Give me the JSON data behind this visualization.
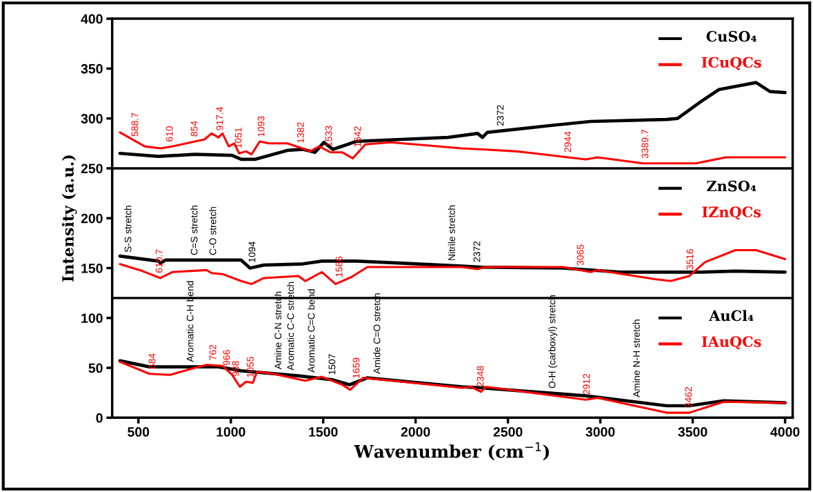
{
  "chart_data": {
    "type": "line",
    "xlabel": "Wavenumber (cm$^{−1}$)",
    "ylabel": "Intensity (a.u.)",
    "xlim": [
      358,
      4041
    ],
    "xticks": [
      500,
      1000,
      1500,
      2000,
      2500,
      3000,
      3500,
      4000
    ],
    "ylim": [
      0,
      400
    ],
    "yticks": [
      0,
      50,
      100,
      150,
      200,
      250,
      300,
      350,
      400
    ],
    "grid": false,
    "legend": "top right",
    "marker": "none",
    "line_style": "solid",
    "ref_lines": [
      {
        "axis": "y",
        "value": 250,
        "color": "#000000",
        "line_style": "solid"
      },
      {
        "axis": "y",
        "value": 120,
        "color": "#000000",
        "line_style": "solid"
      }
    ],
    "series": [
      {
        "name": "CuSO₄",
        "color": "#000000",
        "x": [
          400,
          608,
          806,
          1007,
          1056,
          1130,
          1306,
          1392,
          1455,
          1504,
          1552,
          1679,
          1925,
          2175,
          2336,
          2362,
          2388,
          2735,
          2948,
          3358,
          3418,
          3545,
          3642,
          3843,
          3918,
          4000
        ],
        "values": [
          265,
          262,
          264,
          263,
          259,
          259,
          268,
          269,
          266,
          276,
          269,
          277,
          279,
          281,
          285,
          281,
          286,
          293,
          297,
          299,
          300,
          317,
          329,
          336,
          327,
          326
        ]
      },
      {
        "name": "ICuQCs",
        "color": "#ff0000",
        "x": [
          400,
          534,
          619,
          683,
          858,
          896,
          933,
          955,
          989,
          1019,
          1045,
          1082,
          1112,
          1157,
          1205,
          1306,
          1403,
          1429,
          1478,
          1541,
          1604,
          1660,
          1728,
          1866,
          2250,
          2362,
          2549,
          2922,
          2985,
          3231,
          3519,
          3679,
          4000
        ],
        "values": [
          286,
          272,
          270,
          272,
          279,
          285,
          281,
          285,
          272,
          275,
          265,
          267,
          264,
          277,
          275,
          275,
          269,
          267,
          272,
          266,
          266,
          260,
          274,
          276,
          270,
          269,
          267,
          259,
          261,
          255,
          255,
          261,
          261
        ]
      },
      {
        "name": "ZnSO₄",
        "color": "#000000",
        "x": [
          400,
          608,
          620,
          646,
          1056,
          1104,
          1179,
          1381,
          1493,
          1679,
          1925,
          2250,
          2351,
          2799,
          3108,
          3545,
          3731,
          4000
        ],
        "values": [
          162,
          157,
          155,
          158,
          158,
          150,
          153,
          154,
          157,
          157,
          155,
          152,
          151,
          150,
          146,
          146,
          147,
          146
        ]
      },
      {
        "name": "IZnQCs",
        "color": "#ff0000",
        "x": [
          400,
          522,
          619,
          683,
          869,
          896,
          955,
          1056,
          1112,
          1179,
          1366,
          1403,
          1493,
          1567,
          1653,
          1739,
          2250,
          2336,
          2373,
          2799,
          2948,
          2985,
          3295,
          3381,
          3481,
          3567,
          3731,
          3843,
          4000
        ],
        "values": [
          154,
          147,
          140,
          146,
          148,
          145,
          144,
          137,
          134,
          140,
          142,
          137,
          146,
          134,
          141,
          151,
          151,
          149,
          151,
          151,
          146,
          148,
          139,
          137,
          142,
          156,
          168,
          168,
          159
        ]
      },
      {
        "name": "AuCl₄",
        "color": "#000000",
        "x": [
          400,
          560,
          933,
          1056,
          1366,
          1552,
          1642,
          1739,
          2250,
          2351,
          2922,
          3358,
          3481,
          3668,
          4000
        ],
        "values": [
          57,
          51,
          51,
          47,
          42,
          38,
          33,
          40,
          31,
          30,
          22,
          12,
          12,
          17,
          15
        ]
      },
      {
        "name": "IAuQCs",
        "color": "#ff0000",
        "x": [
          400,
          560,
          672,
          806,
          869,
          955,
          1007,
          1049,
          1082,
          1119,
          1142,
          1231,
          1403,
          1493,
          1604,
          1646,
          1716,
          2250,
          2299,
          2355,
          2380,
          2922,
          2985,
          3358,
          3481,
          3668,
          4000
        ],
        "values": [
          56,
          44,
          43,
          50,
          53,
          52,
          43,
          31,
          36,
          35,
          46,
          44,
          37,
          41,
          33,
          28,
          40,
          30,
          31,
          26,
          31,
          18,
          20,
          5,
          5,
          16,
          15
        ]
      }
    ],
    "annotations": [
      {
        "text": "588.7",
        "x": 485,
        "y": 277.1
      },
      {
        "text": "610",
        "x": 672,
        "y": 271.7
      },
      {
        "text": "854",
        "x": 806,
        "y": 276.9
      },
      {
        "text": "917.4",
        "x": 944,
        "y": 283
      },
      {
        "text": "1051",
        "x": 1045,
        "y": 265
      },
      {
        "text": "1093",
        "x": 1168,
        "y": 276.5
      },
      {
        "text": "1382",
        "x": 1382,
        "y": 270.3
      },
      {
        "text": "1533",
        "x": 1534,
        "y": 266.7
      },
      {
        "text": "1642",
        "x": 1690,
        "y": 266.2
      },
      {
        "text": "2372",
        "x": 2463,
        "y": 287.5
      },
      {
        "text": "2944",
        "x": 2828,
        "y": 261
      },
      {
        "text": "3389.7",
        "x": 3246,
        "y": 255
      },
      {
        "text": "S-S stretch",
        "x": 448,
        "y": 160.8
      },
      {
        "text": "610.7",
        "x": 616,
        "y": 140.2
      },
      {
        "text": "C=S stretch",
        "x": 806,
        "y": 158
      },
      {
        "text": "C-O stretch",
        "x": 907,
        "y": 158
      },
      {
        "text": "1094",
        "x": 1119,
        "y": 150.6
      },
      {
        "text": "1586",
        "x": 1590,
        "y": 135.9
      },
      {
        "text": "Nitrile stretch",
        "x": 2200,
        "y": 152.5
      },
      {
        "text": "2372",
        "x": 2336,
        "y": 151.1
      },
      {
        "text": "3065",
        "x": 2896,
        "y": 147.7
      },
      {
        "text": "3516",
        "x": 3489,
        "y": 143.3
      },
      {
        "text": "762",
        "x": 907,
        "y": 52.6
      },
      {
        "text": "988",
        "x": 1030,
        "y": 36.4
      },
      {
        "text": "Aromatic C-H bend",
        "x": 784,
        "y": 51
      },
      {
        "text": "Amine C-N stretch",
        "x": 1260,
        "y": 43.7
      },
      {
        "text": "Aromatic C-C stretch",
        "x": 1328,
        "y": 42.6
      },
      {
        "text": "Aromatic C=C bend",
        "x": 1440,
        "y": 40.4
      },
      {
        "text": "Amide C=O stretch",
        "x": 1795,
        "y": 39.0
      },
      {
        "text": "684",
        "x": 578,
        "y": 43.8
      },
      {
        "text": "966",
        "x": 981,
        "y": 47.5
      },
      {
        "text": "1055",
        "x": 1110,
        "y": 35.2
      },
      {
        "text": "1507",
        "x": 1552,
        "y": 38
      },
      {
        "text": "1659",
        "x": 1683,
        "y": 34.3
      },
      {
        "text": "2348",
        "x": 2355,
        "y": 26
      },
      {
        "text": "O-H (carboxyl) stretch",
        "x": 2743,
        "y": 24.5
      },
      {
        "text": "2912",
        "x": 2929,
        "y": 18.2
      },
      {
        "text": "Amine N-H stretch",
        "x": 3200,
        "y": 15.6
      },
      {
        "text": "3462",
        "x": 3481,
        "y": 5
      }
    ]
  }
}
